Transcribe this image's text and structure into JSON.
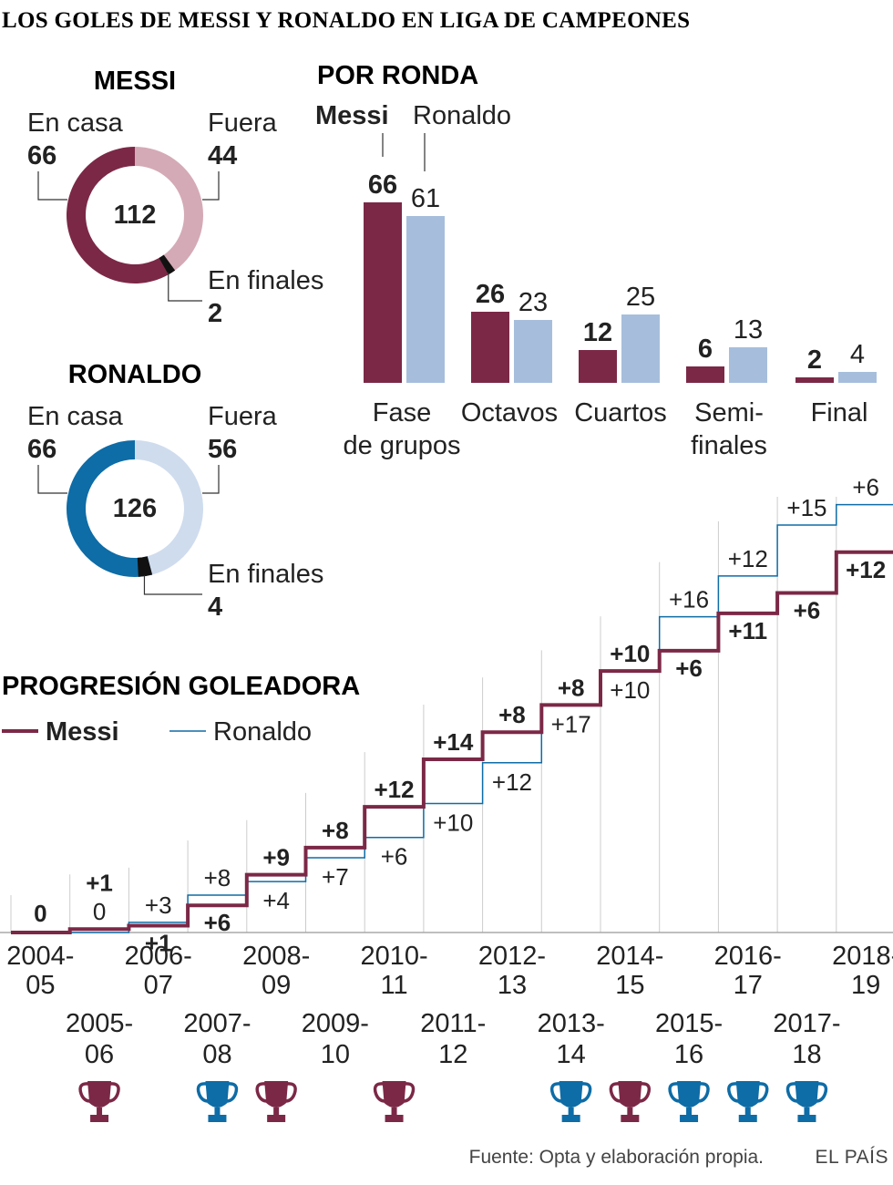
{
  "title": "LOS GOLES DE MESSI Y RONALDO EN LIGA DE CAMPEONES",
  "colors": {
    "messi": "#7b2846",
    "messi_light": "#d4aab6",
    "ronaldo": "#0e6ca6",
    "ronaldo_light": "#cfdcee",
    "ronaldo_bar": "#a6bedc",
    "finals": "#111111",
    "grid": "#cccccc",
    "text": "#222222"
  },
  "donuts": [
    {
      "name": "MESSI",
      "total": "112",
      "home_label": "En casa",
      "home": 66,
      "away_label": "Fuera",
      "away": 44,
      "finals_label": "En finales",
      "finals": 2,
      "player": "messi"
    },
    {
      "name": "RONALDO",
      "total": "126",
      "home_label": "En casa",
      "home": 66,
      "away_label": "Fuera",
      "away": 56,
      "finals_label": "En finales",
      "finals": 4,
      "player": "ronaldo"
    }
  ],
  "chart_data": [
    {
      "type": "bar",
      "title": "POR RONDA",
      "legend": [
        "Messi",
        "Ronaldo"
      ],
      "categories": [
        [
          "Fase",
          "de grupos"
        ],
        [
          "Octavos"
        ],
        [
          "Cuartos"
        ],
        [
          "Semi-",
          "finales"
        ],
        [
          "Final"
        ]
      ],
      "series": [
        {
          "name": "Messi",
          "values": [
            66,
            26,
            12,
            6,
            2
          ]
        },
        {
          "name": "Ronaldo",
          "values": [
            61,
            23,
            25,
            13,
            4
          ]
        }
      ],
      "ylim": [
        0,
        66
      ]
    },
    {
      "type": "line",
      "title": "PROGRESIÓN GOLEADORA",
      "legend": [
        "Messi",
        "Ronaldo"
      ],
      "seasons": [
        "2004-05",
        "2005-06",
        "2006-07",
        "2007-08",
        "2008-09",
        "2009-10",
        "2010-11",
        "2011-12",
        "2012-13",
        "2013-14",
        "2014-15",
        "2015-16",
        "2016-17",
        "2017-18",
        "2018-19"
      ],
      "ticks_top": [
        [
          "2004-",
          "05"
        ],
        [
          "2006-",
          "07"
        ],
        [
          "2008-",
          "09"
        ],
        [
          "2010-",
          "11"
        ],
        [
          "2012-",
          "13"
        ],
        [
          "2014-",
          "15"
        ],
        [
          "2016-",
          "17"
        ],
        [
          "2018-",
          "19"
        ]
      ],
      "ticks_bottom": [
        [
          "2005-",
          "06"
        ],
        [
          "2007-",
          "08"
        ],
        [
          "2009-",
          "10"
        ],
        [
          "2011-",
          "12"
        ],
        [
          "2013-",
          "14"
        ],
        [
          "2015-",
          "16"
        ],
        [
          "2017-",
          "18"
        ]
      ],
      "series": [
        {
          "name": "Messi",
          "increments": [
            0,
            1,
            1,
            6,
            9,
            8,
            12,
            14,
            8,
            8,
            10,
            6,
            11,
            6,
            12
          ],
          "labels": [
            "0",
            "+1",
            "+1",
            "+6",
            "+9",
            "+8",
            "+12",
            "+14",
            "+8",
            "+8",
            "+10",
            "+6",
            "+11",
            "+6",
            "+12"
          ]
        },
        {
          "name": "Ronaldo",
          "increments": [
            0,
            0,
            3,
            8,
            4,
            7,
            6,
            10,
            12,
            17,
            10,
            16,
            12,
            15,
            6
          ],
          "labels": [
            "",
            "0",
            "+3",
            "+8",
            "+4",
            "+7",
            "+6",
            "+10",
            "+12",
            "+17",
            "+10",
            "+16",
            "+12",
            "+15",
            "+6"
          ]
        }
      ],
      "trophies": [
        {
          "season": "2005-06",
          "player": "messi"
        },
        {
          "season": "2007-08",
          "player": "ronaldo"
        },
        {
          "season": "2008-09",
          "player": "messi"
        },
        {
          "season": "2010-11",
          "player": "messi"
        },
        {
          "season": "2013-14",
          "player": "ronaldo"
        },
        {
          "season": "2014-15",
          "player": "messi"
        },
        {
          "season": "2015-16",
          "player": "ronaldo"
        },
        {
          "season": "2016-17",
          "player": "ronaldo"
        },
        {
          "season": "2017-18",
          "player": "ronaldo"
        }
      ]
    }
  ],
  "source": "Fuente: Opta y elaboración propia.",
  "brand": "EL PAÍS"
}
